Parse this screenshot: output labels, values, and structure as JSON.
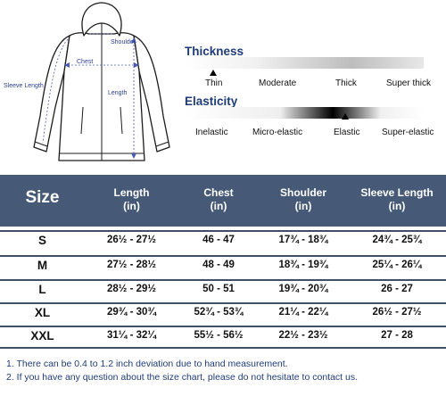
{
  "diagram": {
    "labels": {
      "shoulder": "Shoulder",
      "chest": "Chest",
      "sleeve_length": "Sleeve Length",
      "length": "Length"
    }
  },
  "thickness": {
    "title": "Thickness",
    "options": [
      "Thin",
      "Moderate",
      "Thick",
      "Super thick"
    ],
    "selected": "Thin"
  },
  "elasticity": {
    "title": "Elasticity",
    "options": [
      "Inelastic",
      "Micro-elastic",
      "Elastic",
      "Super-elastic"
    ],
    "selected": "Elastic"
  },
  "size_table": {
    "headers": [
      {
        "name": "Size",
        "unit": ""
      },
      {
        "name": "Length",
        "unit": "(in)"
      },
      {
        "name": "Chest",
        "unit": "(in)"
      },
      {
        "name": "Shoulder",
        "unit": "(in)"
      },
      {
        "name": "Sleeve Length",
        "unit": "(in)"
      }
    ],
    "rows": [
      [
        "S",
        "26½ - 27½",
        "46 - 47",
        "17¾ - 18¾",
        "24¾ - 25¾"
      ],
      [
        "M",
        "27½ - 28½",
        "48 - 49",
        "18¾ - 19¾",
        "25¼ - 26¼"
      ],
      [
        "L",
        "28½ - 29½",
        "50 - 51",
        "19¾ - 20¾",
        "26 - 27"
      ],
      [
        "XL",
        "29¾ - 30¾",
        "52¾ - 53¾",
        "21¼ - 22¼",
        "26½ - 27½"
      ],
      [
        "XXL",
        "31¼ - 32¼",
        "55½ - 56½",
        "22½ - 23½",
        "27 - 28"
      ]
    ]
  },
  "notes": [
    "1. There can be 0.4 to 1.2 inch deviation due to hand measurement.",
    "2. If you have any question about the size chart, please do not hesitate to contact us."
  ],
  "colors": {
    "header_bg": "#465a77",
    "title_blue": "#1f3c78",
    "label_blue": "#2b3f8f"
  }
}
